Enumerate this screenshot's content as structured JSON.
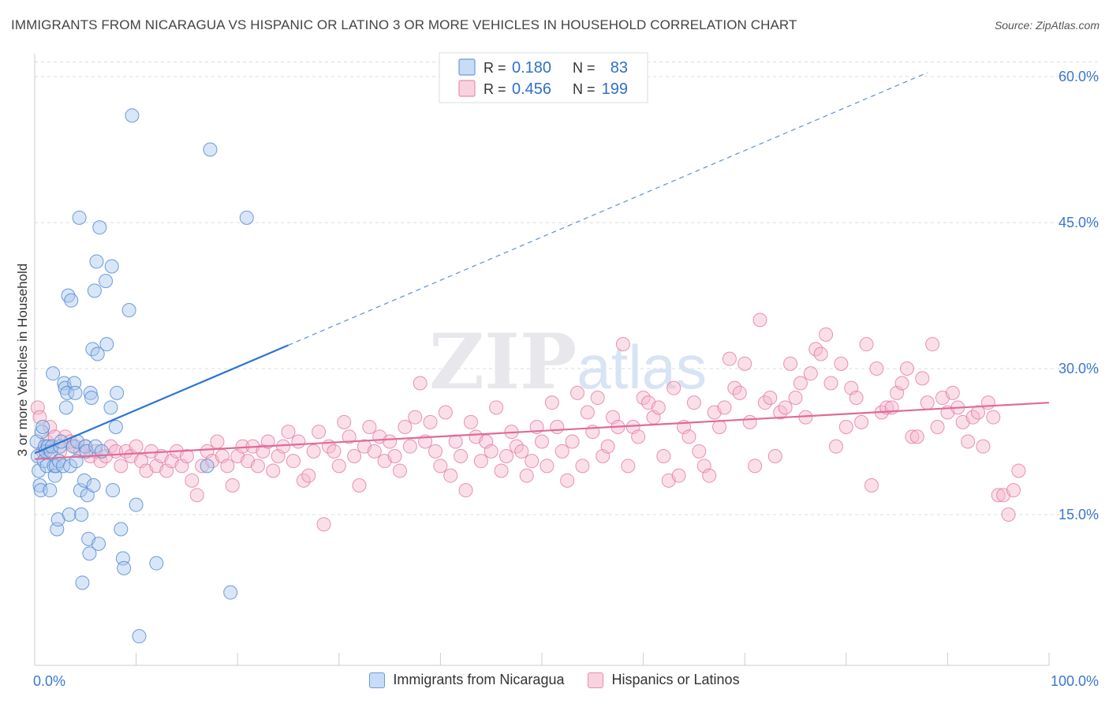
{
  "header": {
    "title": "IMMIGRANTS FROM NICARAGUA VS HISPANIC OR LATINO 3 OR MORE VEHICLES IN HOUSEHOLD CORRELATION CHART",
    "source": "Source: ZipAtlas.com"
  },
  "watermark": "ZIPatlas",
  "colors": {
    "blue_fill": "#aac8ee",
    "blue_stroke": "#4a86d0",
    "blue_line": "#2f74d0",
    "pink_fill": "#f6b9cd",
    "pink_stroke": "#e07aa0",
    "pink_line": "#e06a98",
    "axis_label": "#3a78d0",
    "grid": "#dddddd"
  },
  "chart_data": {
    "type": "scatter",
    "title": "IMMIGRANTS FROM NICARAGUA VS HISPANIC OR LATINO 3 OR MORE VEHICLES IN HOUSEHOLD CORRELATION CHART",
    "xlabel": "",
    "ylabel": "3 or more Vehicles in Household",
    "xlim": [
      0,
      100
    ],
    "ylim": [
      0,
      63
    ],
    "x_tick_labels": [
      "0.0%",
      "100.0%"
    ],
    "y_ticks": [
      15,
      30,
      45,
      60
    ],
    "y_tick_labels": [
      "15.0%",
      "30.0%",
      "45.0%",
      "60.0%"
    ],
    "grid": true,
    "legend_position": "top-center",
    "stats": [
      {
        "r_label": "R =",
        "r_value": "0.180",
        "n_label": "N =",
        "n_value": "83"
      },
      {
        "r_label": "R =",
        "r_value": "0.456",
        "n_label": "N =",
        "n_value": "199"
      }
    ],
    "series": [
      {
        "name": "Immigrants from Nicaragua",
        "color": "blue",
        "trend": {
          "x0": 0,
          "y0": 21.3,
          "x1": 25,
          "y1": 32.4,
          "dashed_to_x": 88,
          "dashed_to_y": 60.4
        },
        "points": [
          [
            0.2,
            22.5
          ],
          [
            0.3,
            21.0
          ],
          [
            0.4,
            19.5
          ],
          [
            0.5,
            18.0
          ],
          [
            0.6,
            17.5
          ],
          [
            0.7,
            23.5
          ],
          [
            0.8,
            24.0
          ],
          [
            0.9,
            20.5
          ],
          [
            1.0,
            22.0
          ],
          [
            1.1,
            21.5
          ],
          [
            1.2,
            20.0
          ],
          [
            1.3,
            22.0
          ],
          [
            1.5,
            17.5
          ],
          [
            1.6,
            21.5
          ],
          [
            1.7,
            22.0
          ],
          [
            1.8,
            29.5
          ],
          [
            1.9,
            20.0
          ],
          [
            2.0,
            19.0
          ],
          [
            2.1,
            20.0
          ],
          [
            2.2,
            13.5
          ],
          [
            2.3,
            14.5
          ],
          [
            2.4,
            20.5
          ],
          [
            2.5,
            22.0
          ],
          [
            2.6,
            22.5
          ],
          [
            2.8,
            20.0
          ],
          [
            2.9,
            28.5
          ],
          [
            3.0,
            28.0
          ],
          [
            3.1,
            26.0
          ],
          [
            3.2,
            27.5
          ],
          [
            3.3,
            37.5
          ],
          [
            3.4,
            15.0
          ],
          [
            3.5,
            20.0
          ],
          [
            3.6,
            37.0
          ],
          [
            3.8,
            22.0
          ],
          [
            3.9,
            28.5
          ],
          [
            4.0,
            27.5
          ],
          [
            4.1,
            20.5
          ],
          [
            4.2,
            22.5
          ],
          [
            4.4,
            45.5
          ],
          [
            4.5,
            17.5
          ],
          [
            4.6,
            15.0
          ],
          [
            4.7,
            8.0
          ],
          [
            4.9,
            18.5
          ],
          [
            5.0,
            22.0
          ],
          [
            5.1,
            21.5
          ],
          [
            5.2,
            17.0
          ],
          [
            5.3,
            12.5
          ],
          [
            5.4,
            11.0
          ],
          [
            5.5,
            27.5
          ],
          [
            5.6,
            27.0
          ],
          [
            5.7,
            32.0
          ],
          [
            5.8,
            18.0
          ],
          [
            5.9,
            38.0
          ],
          [
            6.0,
            22.0
          ],
          [
            6.1,
            41.0
          ],
          [
            6.2,
            31.5
          ],
          [
            6.3,
            12.0
          ],
          [
            6.4,
            44.5
          ],
          [
            6.6,
            21.5
          ],
          [
            7.0,
            39.0
          ],
          [
            7.1,
            32.5
          ],
          [
            7.5,
            26.0
          ],
          [
            7.6,
            40.5
          ],
          [
            7.7,
            17.5
          ],
          [
            8.0,
            24.0
          ],
          [
            8.1,
            27.5
          ],
          [
            8.5,
            13.5
          ],
          [
            8.7,
            10.5
          ],
          [
            8.8,
            9.5
          ],
          [
            9.3,
            36.0
          ],
          [
            9.6,
            56.0
          ],
          [
            10.0,
            16.0
          ],
          [
            10.3,
            2.5
          ],
          [
            12.0,
            10.0
          ],
          [
            17.0,
            20.0
          ],
          [
            17.3,
            52.5
          ],
          [
            19.3,
            7.0
          ],
          [
            20.9,
            45.5
          ]
        ]
      },
      {
        "name": "Hispanics or Latinos",
        "color": "pink",
        "trend": {
          "x0": 0,
          "y0": 20.7,
          "x1": 100,
          "y1": 26.5
        },
        "points": [
          [
            0.3,
            26.0
          ],
          [
            0.5,
            25.0
          ],
          [
            0.8,
            21.5
          ],
          [
            1.2,
            22.5
          ],
          [
            1.5,
            24.0
          ],
          [
            2.0,
            23.0
          ],
          [
            2.5,
            21.5
          ],
          [
            3.0,
            23.0
          ],
          [
            3.5,
            22.5
          ],
          [
            4.0,
            22.0
          ],
          [
            4.5,
            21.5
          ],
          [
            5.0,
            22.0
          ],
          [
            5.5,
            21.0
          ],
          [
            6.0,
            21.5
          ],
          [
            6.5,
            20.5
          ],
          [
            7.0,
            21.0
          ],
          [
            7.5,
            22.0
          ],
          [
            8.0,
            21.5
          ],
          [
            8.5,
            20.0
          ],
          [
            9.0,
            21.5
          ],
          [
            9.5,
            21.0
          ],
          [
            10.0,
            22.0
          ],
          [
            10.5,
            20.5
          ],
          [
            11.0,
            19.5
          ],
          [
            11.5,
            21.5
          ],
          [
            12.0,
            20.0
          ],
          [
            12.5,
            21.0
          ],
          [
            13.0,
            19.5
          ],
          [
            13.5,
            20.5
          ],
          [
            14.0,
            21.5
          ],
          [
            14.5,
            20.0
          ],
          [
            15.0,
            21.0
          ],
          [
            15.5,
            18.5
          ],
          [
            16.0,
            17.0
          ],
          [
            16.5,
            20.0
          ],
          [
            17.0,
            21.5
          ],
          [
            17.5,
            20.5
          ],
          [
            18.0,
            22.5
          ],
          [
            18.5,
            21.0
          ],
          [
            19.0,
            20.0
          ],
          [
            19.5,
            18.0
          ],
          [
            20.0,
            21.0
          ],
          [
            20.5,
            22.0
          ],
          [
            21.0,
            20.5
          ],
          [
            21.5,
            22.0
          ],
          [
            22.0,
            20.0
          ],
          [
            22.5,
            21.5
          ],
          [
            23.0,
            22.5
          ],
          [
            23.5,
            19.5
          ],
          [
            24.0,
            21.0
          ],
          [
            24.5,
            22.0
          ],
          [
            25.0,
            23.5
          ],
          [
            25.5,
            20.5
          ],
          [
            26.0,
            22.5
          ],
          [
            26.5,
            18.5
          ],
          [
            27.0,
            19.0
          ],
          [
            27.5,
            21.5
          ],
          [
            28.0,
            23.5
          ],
          [
            28.5,
            14.0
          ],
          [
            29.0,
            22.0
          ],
          [
            29.5,
            21.5
          ],
          [
            30.0,
            20.0
          ],
          [
            30.5,
            24.5
          ],
          [
            31.0,
            23.0
          ],
          [
            31.5,
            21.0
          ],
          [
            32.0,
            18.0
          ],
          [
            32.5,
            22.0
          ],
          [
            33.0,
            24.0
          ],
          [
            33.5,
            21.5
          ],
          [
            34.0,
            23.0
          ],
          [
            34.5,
            20.5
          ],
          [
            35.0,
            22.5
          ],
          [
            35.5,
            21.0
          ],
          [
            36.0,
            19.5
          ],
          [
            36.5,
            24.0
          ],
          [
            37.0,
            22.0
          ],
          [
            37.5,
            25.0
          ],
          [
            38.0,
            28.5
          ],
          [
            38.5,
            22.5
          ],
          [
            39.0,
            24.5
          ],
          [
            39.5,
            21.5
          ],
          [
            40.0,
            20.0
          ],
          [
            40.5,
            25.5
          ],
          [
            41.0,
            19.0
          ],
          [
            41.5,
            22.5
          ],
          [
            42.0,
            21.0
          ],
          [
            42.5,
            17.5
          ],
          [
            43.0,
            24.5
          ],
          [
            43.5,
            23.0
          ],
          [
            44.0,
            20.5
          ],
          [
            44.5,
            22.5
          ],
          [
            45.0,
            21.5
          ],
          [
            45.5,
            26.0
          ],
          [
            46.0,
            19.5
          ],
          [
            46.5,
            21.0
          ],
          [
            47.0,
            23.5
          ],
          [
            47.5,
            22.0
          ],
          [
            48.0,
            21.5
          ],
          [
            48.5,
            19.0
          ],
          [
            49.0,
            20.5
          ],
          [
            49.5,
            24.0
          ],
          [
            50.0,
            22.5
          ],
          [
            50.5,
            20.0
          ],
          [
            51.0,
            26.5
          ],
          [
            51.5,
            24.0
          ],
          [
            52.0,
            21.5
          ],
          [
            52.5,
            18.5
          ],
          [
            53.0,
            22.5
          ],
          [
            53.5,
            27.5
          ],
          [
            54.0,
            20.0
          ],
          [
            54.5,
            25.5
          ],
          [
            55.0,
            23.5
          ],
          [
            55.5,
            27.0
          ],
          [
            56.0,
            21.0
          ],
          [
            56.5,
            22.0
          ],
          [
            57.0,
            25.0
          ],
          [
            57.5,
            24.0
          ],
          [
            58.0,
            32.5
          ],
          [
            58.5,
            20.0
          ],
          [
            59.0,
            24.0
          ],
          [
            59.5,
            23.0
          ],
          [
            60.0,
            27.0
          ],
          [
            60.5,
            26.5
          ],
          [
            61.0,
            25.0
          ],
          [
            61.5,
            26.0
          ],
          [
            62.0,
            21.0
          ],
          [
            62.5,
            18.5
          ],
          [
            63.0,
            28.0
          ],
          [
            63.5,
            19.0
          ],
          [
            64.0,
            24.0
          ],
          [
            64.5,
            23.0
          ],
          [
            65.0,
            26.5
          ],
          [
            65.5,
            21.5
          ],
          [
            66.0,
            20.0
          ],
          [
            66.5,
            19.0
          ],
          [
            67.0,
            25.5
          ],
          [
            67.5,
            24.0
          ],
          [
            68.0,
            26.0
          ],
          [
            68.5,
            31.0
          ],
          [
            69.0,
            28.0
          ],
          [
            69.5,
            27.5
          ],
          [
            70.0,
            30.5
          ],
          [
            70.5,
            24.5
          ],
          [
            71.0,
            20.0
          ],
          [
            71.5,
            35.0
          ],
          [
            72.0,
            26.5
          ],
          [
            72.5,
            27.0
          ],
          [
            73.0,
            21.0
          ],
          [
            73.5,
            25.5
          ],
          [
            74.0,
            26.0
          ],
          [
            74.5,
            30.5
          ],
          [
            75.0,
            27.0
          ],
          [
            75.5,
            28.5
          ],
          [
            76.0,
            25.0
          ],
          [
            76.5,
            29.5
          ],
          [
            77.0,
            32.0
          ],
          [
            77.5,
            31.5
          ],
          [
            78.0,
            33.5
          ],
          [
            78.5,
            28.5
          ],
          [
            79.0,
            22.0
          ],
          [
            79.5,
            30.5
          ],
          [
            80.0,
            24.0
          ],
          [
            80.5,
            28.0
          ],
          [
            81.0,
            27.0
          ],
          [
            81.5,
            24.5
          ],
          [
            82.0,
            32.5
          ],
          [
            82.5,
            18.0
          ],
          [
            83.0,
            30.0
          ],
          [
            83.5,
            25.5
          ],
          [
            84.0,
            26.0
          ],
          [
            84.5,
            26.0
          ],
          [
            85.0,
            27.5
          ],
          [
            85.5,
            28.5
          ],
          [
            86.0,
            30.0
          ],
          [
            86.5,
            23.0
          ],
          [
            87.0,
            23.0
          ],
          [
            87.5,
            29.0
          ],
          [
            88.0,
            26.5
          ],
          [
            88.5,
            32.5
          ],
          [
            89.0,
            24.0
          ],
          [
            89.5,
            27.0
          ],
          [
            90.0,
            25.5
          ],
          [
            90.5,
            27.5
          ],
          [
            91.0,
            26.0
          ],
          [
            91.5,
            24.5
          ],
          [
            92.0,
            22.5
          ],
          [
            92.5,
            25.0
          ],
          [
            93.0,
            25.5
          ],
          [
            93.5,
            22.0
          ],
          [
            94.0,
            26.5
          ],
          [
            94.5,
            25.0
          ],
          [
            95.0,
            17.0
          ],
          [
            95.5,
            17.0
          ],
          [
            96.0,
            15.0
          ],
          [
            96.5,
            17.5
          ],
          [
            97.0,
            19.5
          ]
        ]
      }
    ]
  }
}
